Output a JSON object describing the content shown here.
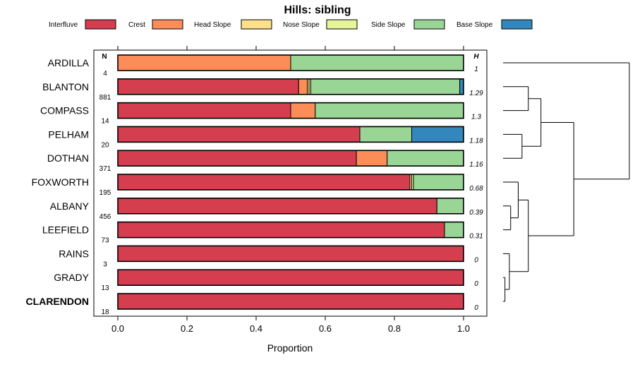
{
  "chart_data": {
    "type": "bar",
    "orientation": "horizontal",
    "stacked": true,
    "title": "Hills: sibling",
    "xlabel": "Proportion",
    "xlim": [
      0,
      1
    ],
    "xticks": [
      0.0,
      0.2,
      0.4,
      0.6,
      0.8,
      1.0
    ],
    "xtick_labels": [
      "0.0",
      "0.2",
      "0.4",
      "0.6",
      "0.8",
      "1.0"
    ],
    "n_header": "N",
    "h_header": "H",
    "legend": [
      {
        "name": "Interfluve",
        "color": "#d53e4f"
      },
      {
        "name": "Crest",
        "color": "#fc8d59"
      },
      {
        "name": "Head Slope",
        "color": "#fee08b"
      },
      {
        "name": "Nose Slope",
        "color": "#e6f598"
      },
      {
        "name": "Side Slope",
        "color": "#99d594"
      },
      {
        "name": "Base Slope",
        "color": "#3288bd"
      }
    ],
    "categories": [
      "ARDILLA",
      "BLANTON",
      "COMPASS",
      "PELHAM",
      "DOTHAN",
      "FOXWORTH",
      "ALBANY",
      "LEEFIELD",
      "RAINS",
      "GRADY",
      "CLARENDON"
    ],
    "bold_category": "CLARENDON",
    "n": [
      "4",
      "881",
      "14",
      "20",
      "371",
      "195",
      "456",
      "73",
      "3",
      "13",
      "18"
    ],
    "h": [
      "1",
      "1.29",
      "1.3",
      "1.18",
      "1.16",
      "0.68",
      "0.39",
      "0.31",
      "0",
      "0",
      "0"
    ],
    "series": [
      {
        "name": "Interfluve",
        "values": [
          0.0,
          0.523,
          0.5,
          0.7,
          0.69,
          0.845,
          0.923,
          0.945,
          1.0,
          1.0,
          1.0
        ]
      },
      {
        "name": "Crest",
        "values": [
          0.5,
          0.025,
          0.071,
          0.0,
          0.089,
          0.0,
          0.0,
          0.0,
          0.0,
          0.0,
          0.0
        ]
      },
      {
        "name": "Head Slope",
        "values": [
          0.0,
          0.005,
          0.0,
          0.0,
          0.0,
          0.005,
          0.0,
          0.0,
          0.0,
          0.0,
          0.0
        ]
      },
      {
        "name": "Nose Slope",
        "values": [
          0.0,
          0.005,
          0.0,
          0.0,
          0.0,
          0.005,
          0.0,
          0.0,
          0.0,
          0.0,
          0.0
        ]
      },
      {
        "name": "Side Slope",
        "values": [
          0.5,
          0.431,
          0.429,
          0.15,
          0.221,
          0.145,
          0.077,
          0.055,
          0.0,
          0.0,
          0.0
        ]
      },
      {
        "name": "Base Slope",
        "values": [
          0.0,
          0.011,
          0.0,
          0.15,
          0.0,
          0.0,
          0.0,
          0.0,
          0.0,
          0.0,
          0.0
        ]
      }
    ],
    "dendrogram": {
      "leaves": [
        "ARDILLA",
        "BLANTON",
        "COMPASS",
        "PELHAM",
        "DOTHAN",
        "FOXWORTH",
        "ALBANY",
        "LEEFIELD",
        "RAINS",
        "GRADY",
        "CLARENDON"
      ],
      "merges": [
        {
          "a": 9,
          "b": 10,
          "height": 0.015
        },
        {
          "a": 8,
          "b": 11,
          "height": 0.05
        },
        {
          "a": 6,
          "b": 7,
          "height": 0.06
        },
        {
          "a": 5,
          "b": 13,
          "height": 0.12
        },
        {
          "a": 3,
          "b": 4,
          "height": 0.15
        },
        {
          "a": 1,
          "b": 2,
          "height": 0.2
        },
        {
          "a": 12,
          "b": 14,
          "height": 0.2
        },
        {
          "a": 15,
          "b": 16,
          "height": 0.3
        },
        {
          "a": 17,
          "b": 18,
          "height": 0.56
        },
        {
          "a": 0,
          "b": 19,
          "height": 1.0
        }
      ]
    }
  }
}
